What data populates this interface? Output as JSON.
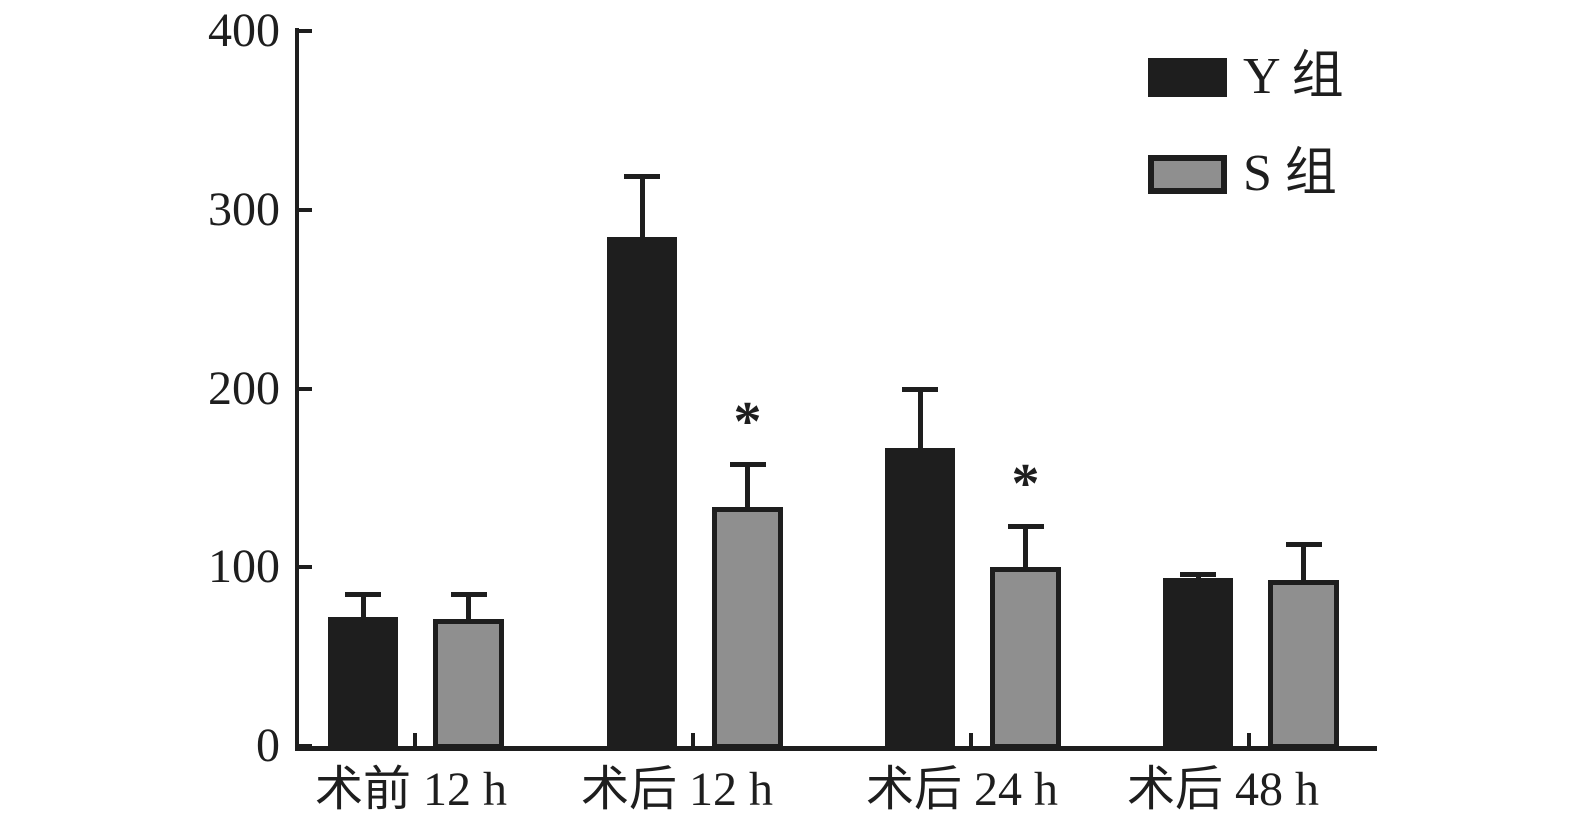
{
  "figure": {
    "background": "#ffffff",
    "axis_color": "#1e1e1e",
    "bar_black": "#1e1e1e",
    "bar_gray": "#8f8f8f"
  },
  "legend": {
    "items": [
      {
        "label": "Y 组",
        "swatch": "black-filled-swatch"
      },
      {
        "label": "S 组",
        "swatch": "gray-outlined-swatch"
      }
    ]
  },
  "chart_data": {
    "type": "bar",
    "title": "",
    "xlabel": "",
    "ylabel": "",
    "categories": [
      "术前 12 h",
      "术后 12 h",
      "术后 24 h",
      "术后 48 h"
    ],
    "series": [
      {
        "name": "Y 组",
        "color": "#1e1e1e",
        "values": [
          72,
          285,
          167,
          94
        ],
        "errors": [
          13,
          34,
          33,
          2
        ],
        "significance": [
          "",
          "",
          "",
          ""
        ]
      },
      {
        "name": "S 组",
        "color": "#8f8f8f",
        "border_color": "#1e1e1e",
        "values": [
          71,
          134,
          100,
          93
        ],
        "errors": [
          14,
          24,
          23,
          20
        ],
        "significance": [
          "",
          "*",
          "*",
          ""
        ]
      }
    ],
    "ylim": [
      0,
      400
    ],
    "yticks": [
      0,
      100,
      200,
      300,
      400
    ],
    "grid": false,
    "error_bars": true,
    "legend_position": "top-right"
  }
}
